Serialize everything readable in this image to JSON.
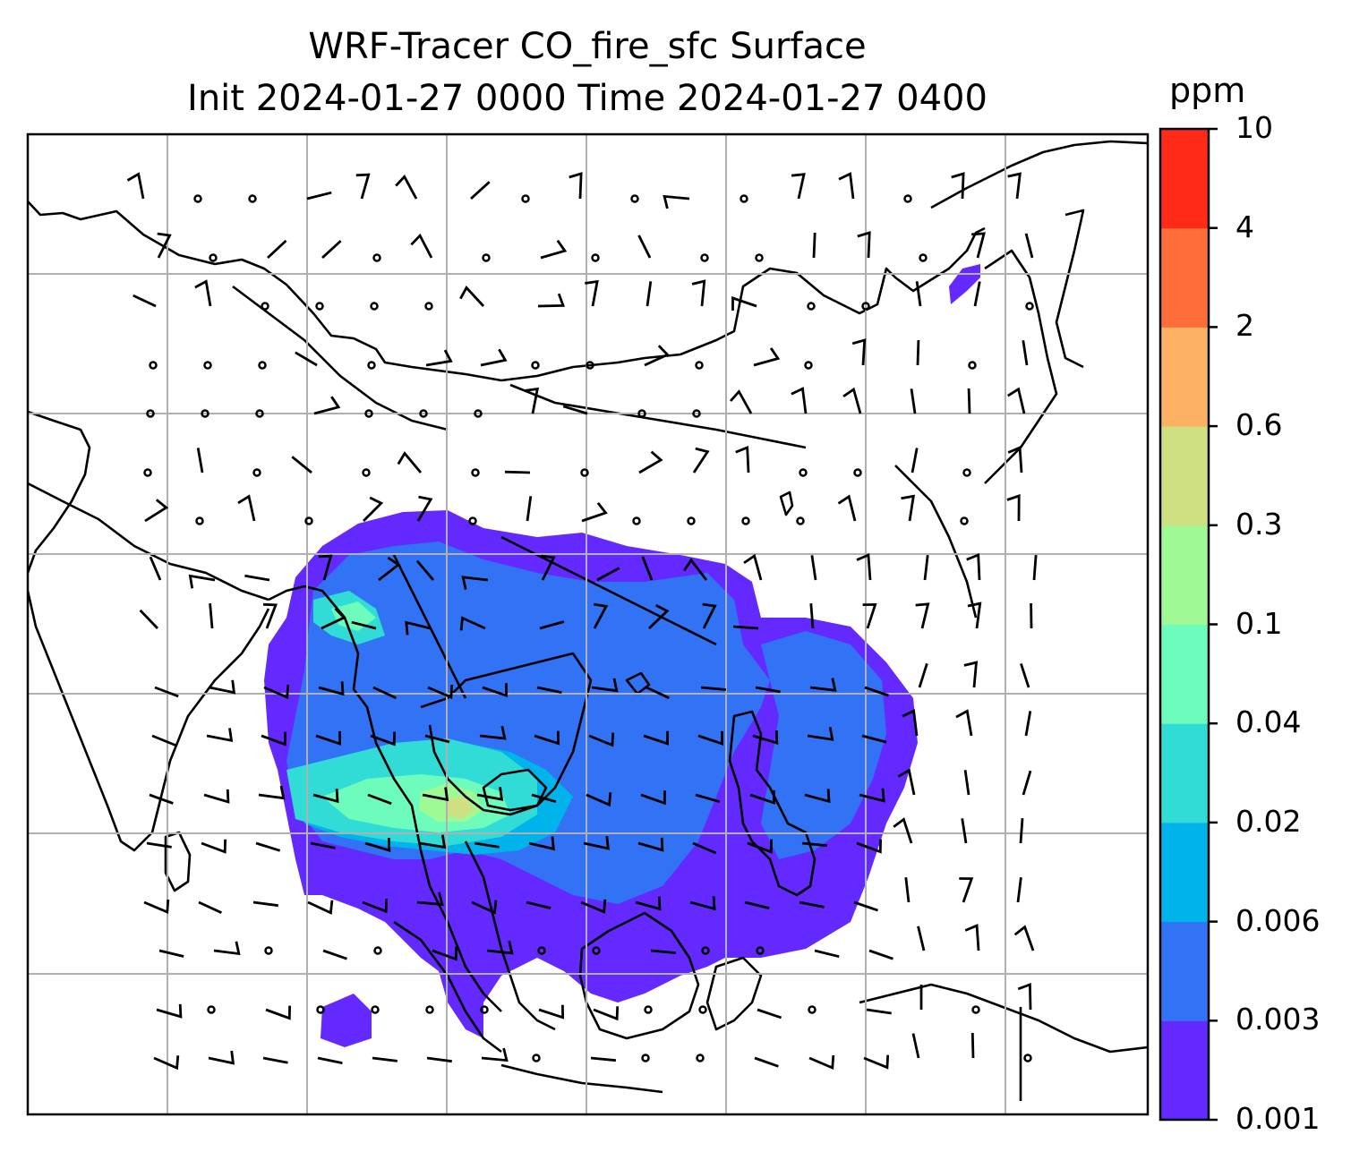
{
  "title": {
    "line1": "WRF-Tracer CO_fire_sfc Surface",
    "line2": "Init 2024-01-27 0000 Time 2024-01-27 0400"
  },
  "colorbar": {
    "unit": "ppm",
    "ticks": [
      "0.001",
      "0.003",
      "0.006",
      "0.02",
      "0.04",
      "0.1",
      "0.3",
      "0.6",
      "2",
      "4",
      "10"
    ],
    "colors": [
      "#6329ff",
      "#3272f5",
      "#00b3eb",
      "#31dbd6",
      "#6efcbc",
      "#9ffa96",
      "#cfe082",
      "#fdb165",
      "#ff6e3a",
      "#ff2a17"
    ]
  },
  "map": {
    "variable": "CO_fire_sfc",
    "level": "Surface",
    "gridlines": true,
    "colors": {
      "coastline": "#000000",
      "gridline": "#b0b0b0",
      "wind_barb": "#000000"
    }
  }
}
